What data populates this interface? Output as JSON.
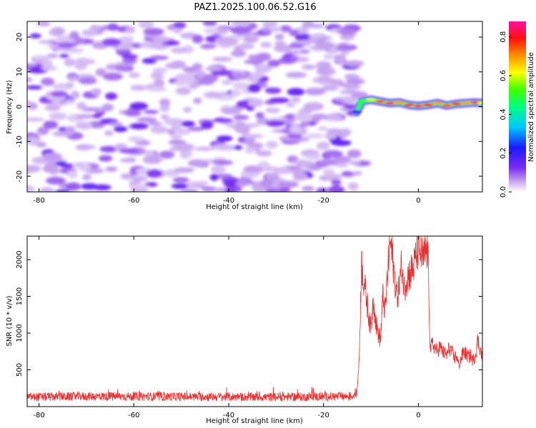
{
  "title": "PAZ1.2025.100.06.52.G16",
  "chart_data": [
    {
      "type": "heatmap",
      "xlabel": "Height of straight line (km)",
      "ylabel": "Frequency (Hz)",
      "xlim": [
        -82.5,
        13.5
      ],
      "ylim": [
        -24.5,
        24.5
      ],
      "x_ticks": [
        "-80",
        "-60",
        "-40",
        "-20",
        "0"
      ],
      "y_ticks": [
        "-20",
        "-10",
        "0",
        "10",
        "20"
      ],
      "colorbar": {
        "label": "Normalized spectral amplitude",
        "range": [
          0.0,
          0.88
        ],
        "ticks": [
          "0.0",
          "0.2",
          "0.4",
          "0.6",
          "0.8"
        ],
        "colormap": "rainbow (white-violet-blue-cyan-green-yellow-red-pink)"
      },
      "regions": [
        {
          "x_range": [
            -82.5,
            -12
          ],
          "description": "noise blobs, amplitude 0.05-0.15, all frequencies"
        },
        {
          "x_range": [
            -12,
            13.5
          ],
          "frequency_hz": [
            1.5,
            1
          ],
          "amplitude_peak": 0.85
        }
      ],
      "ridge": {
        "x": [
          -13,
          -12,
          -10,
          -8,
          -6,
          -4,
          -2,
          0,
          2,
          4,
          6,
          8,
          10,
          12,
          13.5
        ],
        "frequency": [
          -1.5,
          1.5,
          2,
          1.5,
          1,
          1.2,
          0.5,
          0.2,
          0.5,
          1,
          0.3,
          0.8,
          1,
          1.2,
          1
        ],
        "amplitude": [
          0.2,
          0.5,
          0.6,
          0.75,
          0.85,
          0.7,
          0.8,
          0.85,
          0.8,
          0.7,
          0.75,
          0.8,
          0.7,
          0.85,
          0.6
        ]
      }
    },
    {
      "type": "line",
      "xlabel": "Height of straight line (km)",
      "ylabel": "SNR (10 * v/v)",
      "xlim": [
        -82.5,
        13.5
      ],
      "ylim": [
        0,
        2320
      ],
      "x_ticks": [
        "-80",
        "-60",
        "-40",
        "-20",
        "0"
      ],
      "y_ticks": [
        "500",
        "1000",
        "1500",
        "2000"
      ],
      "color": "#e83030",
      "series": [
        {
          "x": [
            -82.5,
            -70,
            -50,
            -30,
            -14,
            -13,
            -12.5,
            -12,
            -11.5,
            -11,
            -10.5,
            -10,
            -9.5,
            -9,
            -8.5,
            -8,
            -7.5,
            -7,
            -6.5,
            -6,
            -5.5,
            -5,
            -4.5,
            -4,
            -3.5,
            -3,
            -2.5,
            -2,
            -1.5,
            -1,
            -0.5,
            0,
            0.5,
            1,
            1.5,
            2,
            2.5,
            3,
            3.5,
            4,
            4.5,
            5,
            5.5,
            6,
            6.5,
            7,
            7.5,
            8,
            8.5,
            9,
            9.5,
            10,
            10.5,
            11,
            11.5,
            12,
            12.5,
            13,
            13.5
          ],
          "y": [
            130,
            140,
            135,
            130,
            140,
            180,
            600,
            1950,
            1700,
            1500,
            1250,
            1050,
            1500,
            1150,
            1000,
            900,
            1500,
            1300,
            1800,
            2250,
            2050,
            1750,
            1500,
            1650,
            1950,
            1600,
            1750,
            1800,
            1850,
            1900,
            2050,
            2150,
            2100,
            2000,
            2100,
            2120,
            780,
            850,
            800,
            750,
            820,
            760,
            720,
            700,
            800,
            750,
            650,
            700,
            560,
            650,
            750,
            720,
            680,
            700,
            620,
            700,
            900,
            800,
            650
          ]
        }
      ]
    }
  ]
}
